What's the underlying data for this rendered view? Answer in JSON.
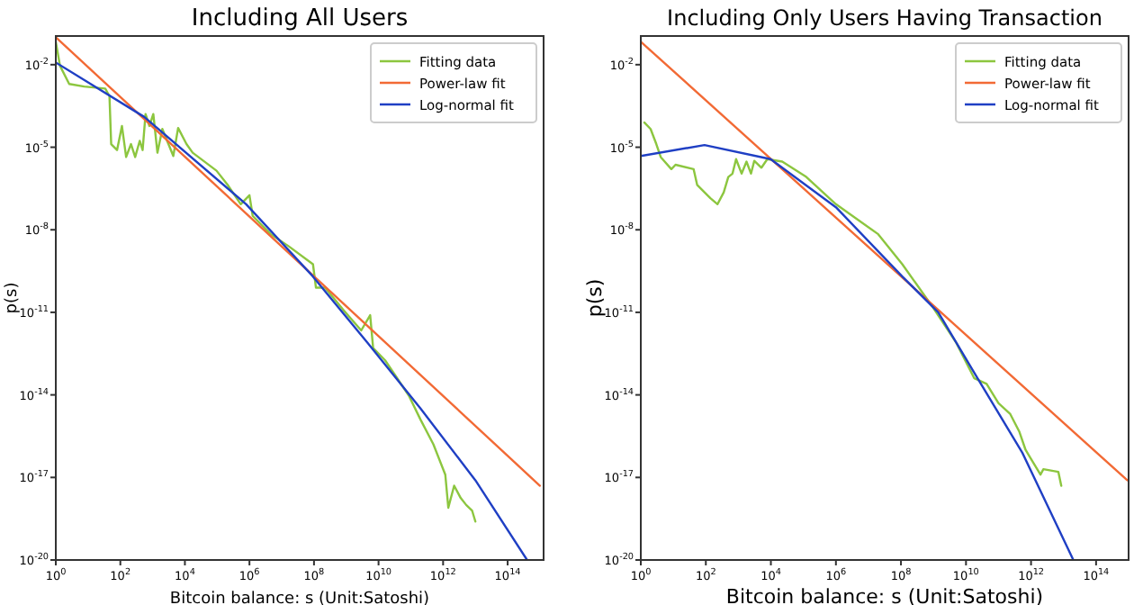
{
  "chart_data": [
    {
      "type": "line",
      "title": "Including All Users",
      "xlabel": "Bitcoin balance: s (Unit:Satoshi)",
      "ylabel": "p(s)",
      "log": "xy",
      "legend": "top right",
      "grid": false,
      "xlim": [
        1,
        1300000000000000.0
      ],
      "ylim": [
        1e-20,
        0.11
      ],
      "xticks": [
        {
          "value": 1,
          "label": "10$^{0}$"
        },
        {
          "value": 100,
          "label": "10$^{2}$"
        },
        {
          "value": 10000.0,
          "label": "10$^{4}$"
        },
        {
          "value": 1000000.0,
          "label": "10$^{6}$"
        },
        {
          "value": 100000000.0,
          "label": "10$^{8}$"
        },
        {
          "value": 10000000000.0,
          "label": "10$^{10}$"
        },
        {
          "value": 1000000000000.0,
          "label": "10$^{12}$"
        },
        {
          "value": 100000000000000.0,
          "label": "10$^{14}$"
        }
      ],
      "yticks": [
        {
          "value": 0.01,
          "label": "10$^{-2}$"
        },
        {
          "value": 1e-05,
          "label": "10$^{-5}$"
        },
        {
          "value": 1e-08,
          "label": "10$^{-8}$"
        },
        {
          "value": 1e-11,
          "label": "10$^{-11}$"
        },
        {
          "value": 1e-14,
          "label": "10$^{-14}$"
        },
        {
          "value": 1e-17,
          "label": "10$^{-17}$"
        },
        {
          "value": 1e-20,
          "label": "10$^{-20}$"
        }
      ],
      "series": [
        {
          "name": "Fitting data",
          "color": "#8cc63f",
          "x": [
            1,
            1.35,
            2.6,
            7.6,
            34,
            46,
            52,
            79,
            112,
            151,
            214,
            288,
            398,
            490,
            603,
            794,
            1050,
            1410,
            2000,
            3090,
            4370,
            6170,
            11200,
            17400,
            95500,
            224000,
            537000,
            1000000.0,
            1260000.0,
            4600000.0,
            16600000.0,
            93000000.0,
            115000000.0,
            220000000.0,
            790000000.0,
            2900000000.0,
            5500000000.0,
            6800000000.0,
            16000000000.0,
            38000000000.0,
            89000000000.0,
            200000000000.0,
            500000000000.0,
            1170000000000.0,
            1450000000000.0,
            2200000000000.0,
            3500000000000.0,
            5200000000000.0,
            7900000000000.0,
            10000000000000.0
          ],
          "values": [
            0.068,
            0.0091,
            0.002,
            0.0016,
            0.00135,
            0.00072,
            1.3e-05,
            7.9e-06,
            5.9e-05,
            4.4e-06,
            1.3e-05,
            4.4e-06,
            1.7e-05,
            7.9e-06,
            0.00016,
            5.9e-05,
            0.00016,
            6.3e-06,
            4.6e-05,
            1.3e-05,
            4.8e-06,
            5e-05,
            1.3e-05,
            6.3e-06,
            1.4e-06,
            3.9e-07,
            8.5e-08,
            1.8e-07,
            3.2e-08,
            6.9e-09,
            2.5e-09,
            5.6e-10,
            7.9e-11,
            7.9e-11,
            1.26e-11,
            2.2e-12,
            7.9e-12,
            5e-13,
            1.8e-13,
            4e-14,
            8.9e-15,
            1.26e-15,
            1.6e-16,
            1.26e-17,
            7.9e-19,
            5e-18,
            1.8e-18,
            1e-18,
            6.3e-19,
            2.5e-19
          ]
        },
        {
          "name": "Power-law fit",
          "color": "#f26a35",
          "x": [
            1,
            1000000000000000.0
          ],
          "values": [
            0.1,
            5e-18
          ]
        },
        {
          "name": "Log-normal fit",
          "color": "#1f3fc4",
          "x": [
            1,
            550,
            790000.0,
            93000000.0,
            4500000000.0,
            200000000000.0,
            10000000000000.0,
            400000000000000.0
          ],
          "values": [
            0.012,
            0.000126,
            8.5e-08,
            2e-10,
            7.9e-13,
            3.2e-15,
            7.9e-18,
            1e-20
          ]
        }
      ]
    },
    {
      "type": "line",
      "title": "Including Only Users Having Transaction",
      "xlabel": "Bitcoin balance: s (Unit:Satoshi)",
      "ylabel": "p(s)",
      "log": "xy",
      "legend": "top right",
      "grid": false,
      "xlim": [
        1,
        1000000000000000.0
      ],
      "ylim": [
        1e-20,
        0.11
      ],
      "xticks": [
        {
          "value": 1,
          "label": "10$^{0}$"
        },
        {
          "value": 100,
          "label": "10$^{2}$"
        },
        {
          "value": 10000.0,
          "label": "10$^{4}$"
        },
        {
          "value": 1000000.0,
          "label": "10$^{6}$"
        },
        {
          "value": 100000000.0,
          "label": "10$^{8}$"
        },
        {
          "value": 10000000000.0,
          "label": "10$^{10}$"
        },
        {
          "value": 1000000000000.0,
          "label": "10$^{12}$"
        },
        {
          "value": 100000000000000.0,
          "label": "10$^{14}$"
        }
      ],
      "yticks": [
        {
          "value": 0.01,
          "label": "10$^{-2}$"
        },
        {
          "value": 1e-05,
          "label": "10$^{-5}$"
        },
        {
          "value": 1e-08,
          "label": "10$^{-8}$"
        },
        {
          "value": 1e-11,
          "label": "10$^{-11}$"
        },
        {
          "value": 1e-14,
          "label": "10$^{-14}$"
        },
        {
          "value": 1e-17,
          "label": "10$^{-17}$"
        },
        {
          "value": 1e-20,
          "label": "10$^{-20}$"
        }
      ],
      "series": [
        {
          "name": "Fitting data",
          "color": "#8cc63f",
          "x": [
            1.29,
            2.0,
            3.0,
            4.1,
            8.7,
            11.7,
            42,
            54,
            112,
            138,
            229,
            355,
            490,
            661,
            851,
            1260,
            1780,
            2450,
            3090,
            5130,
            7760,
            22400,
            123000,
            1000000.0,
            20000000.0,
            110000000.0,
            930000000.0,
            5000000000.0,
            18000000000.0,
            43000000000.0,
            100000000000.0,
            230000000000.0,
            440000000000.0,
            680000000000.0,
            1950000000000.0,
            2400000000000.0,
            6900000000000.0,
            8500000000000.0
          ],
          "values": [
            7.9e-05,
            4.6e-05,
            1.3e-05,
            4.4e-06,
            1.6e-06,
            2.3e-06,
            1.6e-06,
            4.3e-07,
            1.8e-07,
            1.4e-07,
            8.5e-08,
            2.3e-07,
            8.3e-07,
            1.1e-06,
            3.7e-06,
            1.1e-06,
            3e-06,
            1.1e-06,
            3.2e-06,
            1.8e-06,
            3.7e-06,
            3e-06,
            8.3e-07,
            8.5e-08,
            6.9e-09,
            5.6e-10,
            1.6e-11,
            7.9e-13,
            4e-14,
            2.5e-14,
            5e-15,
            2e-15,
            4.5e-16,
            1e-16,
            1.26e-17,
            2e-17,
            1.6e-17,
            5e-18
          ]
        },
        {
          "name": "Power-law fit",
          "color": "#f26a35",
          "x": [
            1,
            910000000000000.0
          ],
          "values": [
            0.068,
            7.9e-18
          ]
        },
        {
          "name": "Log-normal fit",
          "color": "#1f3fc4",
          "x": [
            1,
            91,
            9800,
            1000000.0,
            110000000.0,
            1400000000.0,
            18000000000.0,
            540000000000.0,
            20000000000000.0
          ],
          "values": [
            4.8e-06,
            1.2e-05,
            3.7e-06,
            6.6e-08,
            2e-10,
            1e-11,
            6.3e-14,
            7.9e-17,
            1e-20
          ]
        }
      ]
    }
  ]
}
